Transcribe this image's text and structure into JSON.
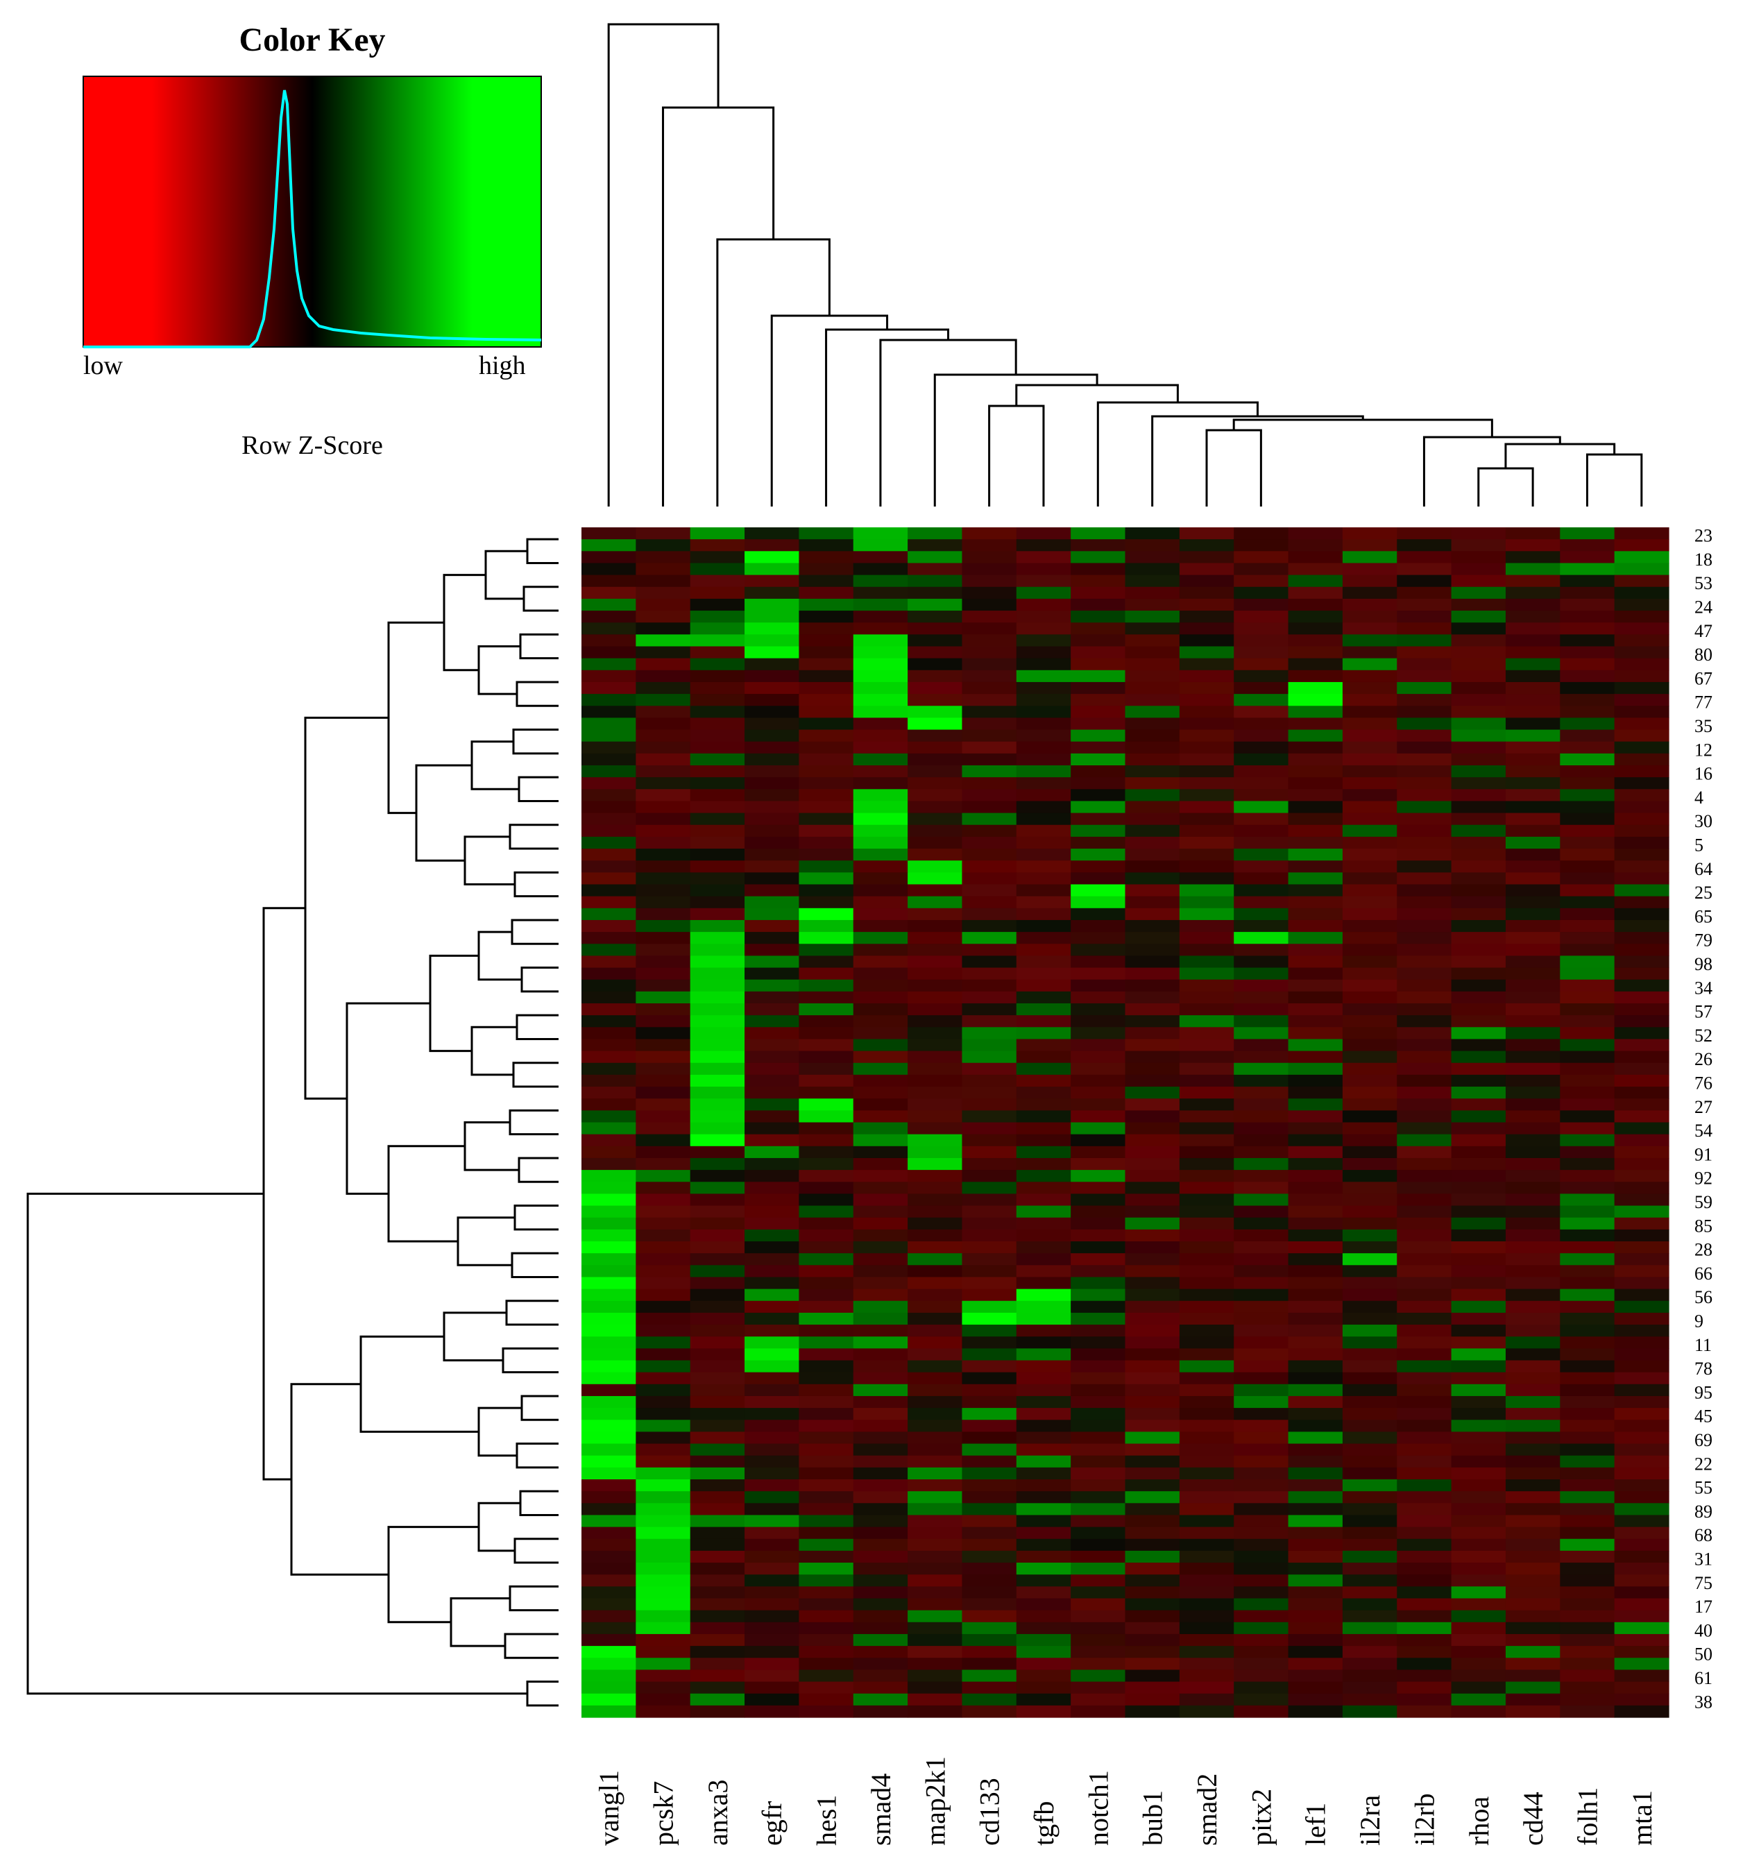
{
  "color_key": {
    "title": "Color Key",
    "low_label": "low",
    "high_label": "high",
    "subtitle": "Row Z-Score",
    "colors": {
      "low": "#ff0000",
      "mid": "#000000",
      "high": "#00ff00",
      "histogram": "#00ffff"
    }
  },
  "chart_data": {
    "type": "heatmap",
    "columns": [
      "vangl1",
      "pcsk7",
      "anxa3",
      "egfr",
      "hes1",
      "smad4",
      "map2k1",
      "cd133",
      "tgfb",
      "notch1",
      "bub1",
      "smad2",
      "pitx2",
      "lef1",
      "il2ra",
      "il2rb",
      "rhoa",
      "cd44",
      "folh1",
      "mta1"
    ],
    "row_labels": [
      "23",
      "18",
      "53",
      "24",
      "47",
      "80",
      "67",
      "77",
      "35",
      "12",
      "16",
      "4",
      "30",
      "5",
      "64",
      "25",
      "65",
      "79",
      "98",
      "34",
      "57",
      "52",
      "26",
      "76",
      "27",
      "54",
      "91",
      "92",
      "59",
      "85",
      "28",
      "66",
      "56",
      "9",
      "11",
      "78",
      "95",
      "45",
      "69",
      "22",
      "55",
      "89",
      "68",
      "31",
      "75",
      "17",
      "40",
      "50",
      "61",
      "38"
    ],
    "value_scale": "Row Z-Score",
    "row_dendrogram": true,
    "column_dendrogram": true,
    "legend_position": "top-left"
  }
}
